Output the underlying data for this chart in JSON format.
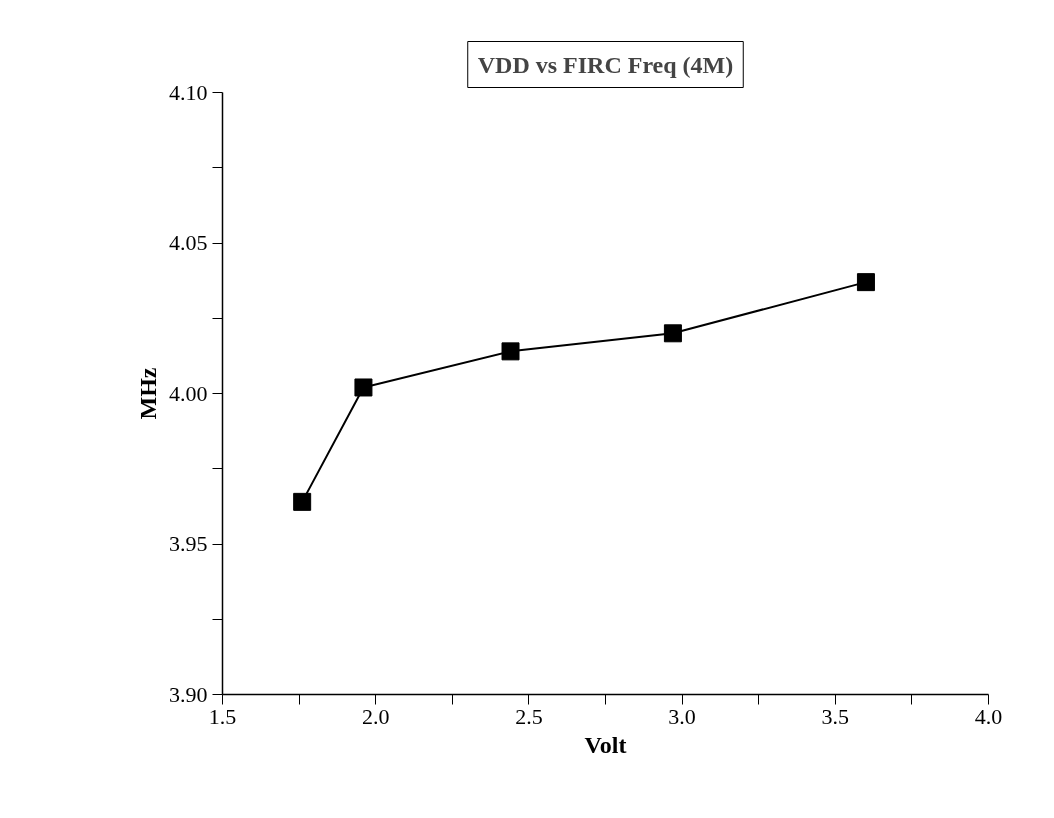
{
  "chart_data": {
    "type": "line",
    "title": "VDD vs FIRC Freq (4M)",
    "xlabel": "Volt",
    "ylabel": "MHz",
    "x": [
      1.76,
      1.96,
      2.44,
      2.97,
      3.6
    ],
    "series": [
      {
        "color": "#000000",
        "values": [
          3.964,
          4.002,
          4.014,
          4.02,
          4.037
        ]
      }
    ],
    "xlim": [
      1.5,
      4.0
    ],
    "xticks": [
      1.5,
      {
        "value": 1.75,
        "label": null
      },
      "2.0",
      {
        "value": 2.25,
        "label": null
      },
      2.5,
      {
        "value": 2.75,
        "label": null
      },
      "3.0",
      {
        "value": 3.25,
        "label": null
      },
      3.5,
      {
        "value": 3.75,
        "label": null
      },
      "4.0"
    ],
    "ylim": [
      3.9,
      4.1
    ],
    "yticks": [
      "3.90",
      {
        "value": 3.925,
        "label": null
      },
      3.95,
      {
        "value": 3.975,
        "label": null
      },
      "4.00",
      {
        "value": 4.025,
        "label": null
      },
      4.05,
      {
        "value": 4.075,
        "label": null
      },
      "4.10"
    ],
    "grid": false,
    "marker": "square",
    "line_style": "solid"
  }
}
